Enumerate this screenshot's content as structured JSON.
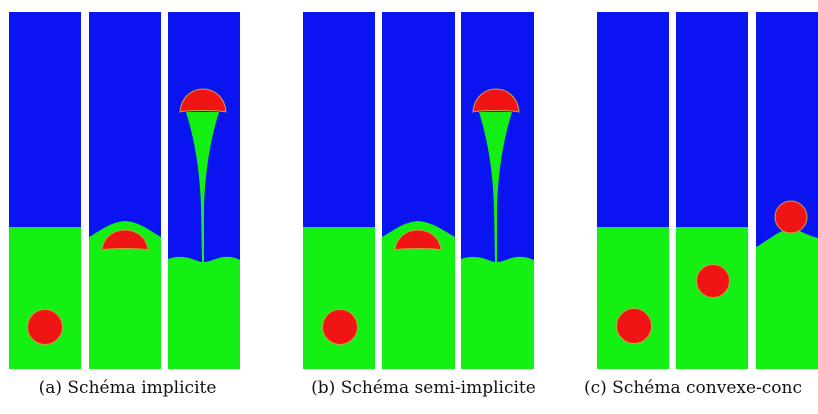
{
  "colors": {
    "gas": "#0a14f0",
    "liquid": "#14f014",
    "bubble": "#f01414",
    "background": "#ffffff"
  },
  "subfigures": [
    {
      "id": "a",
      "caption": "(a) Schéma implicite"
    },
    {
      "id": "b",
      "caption": "(b) Schéma semi-implicite"
    },
    {
      "id": "c",
      "caption": "(c) Schéma convexe-conc"
    }
  ]
}
